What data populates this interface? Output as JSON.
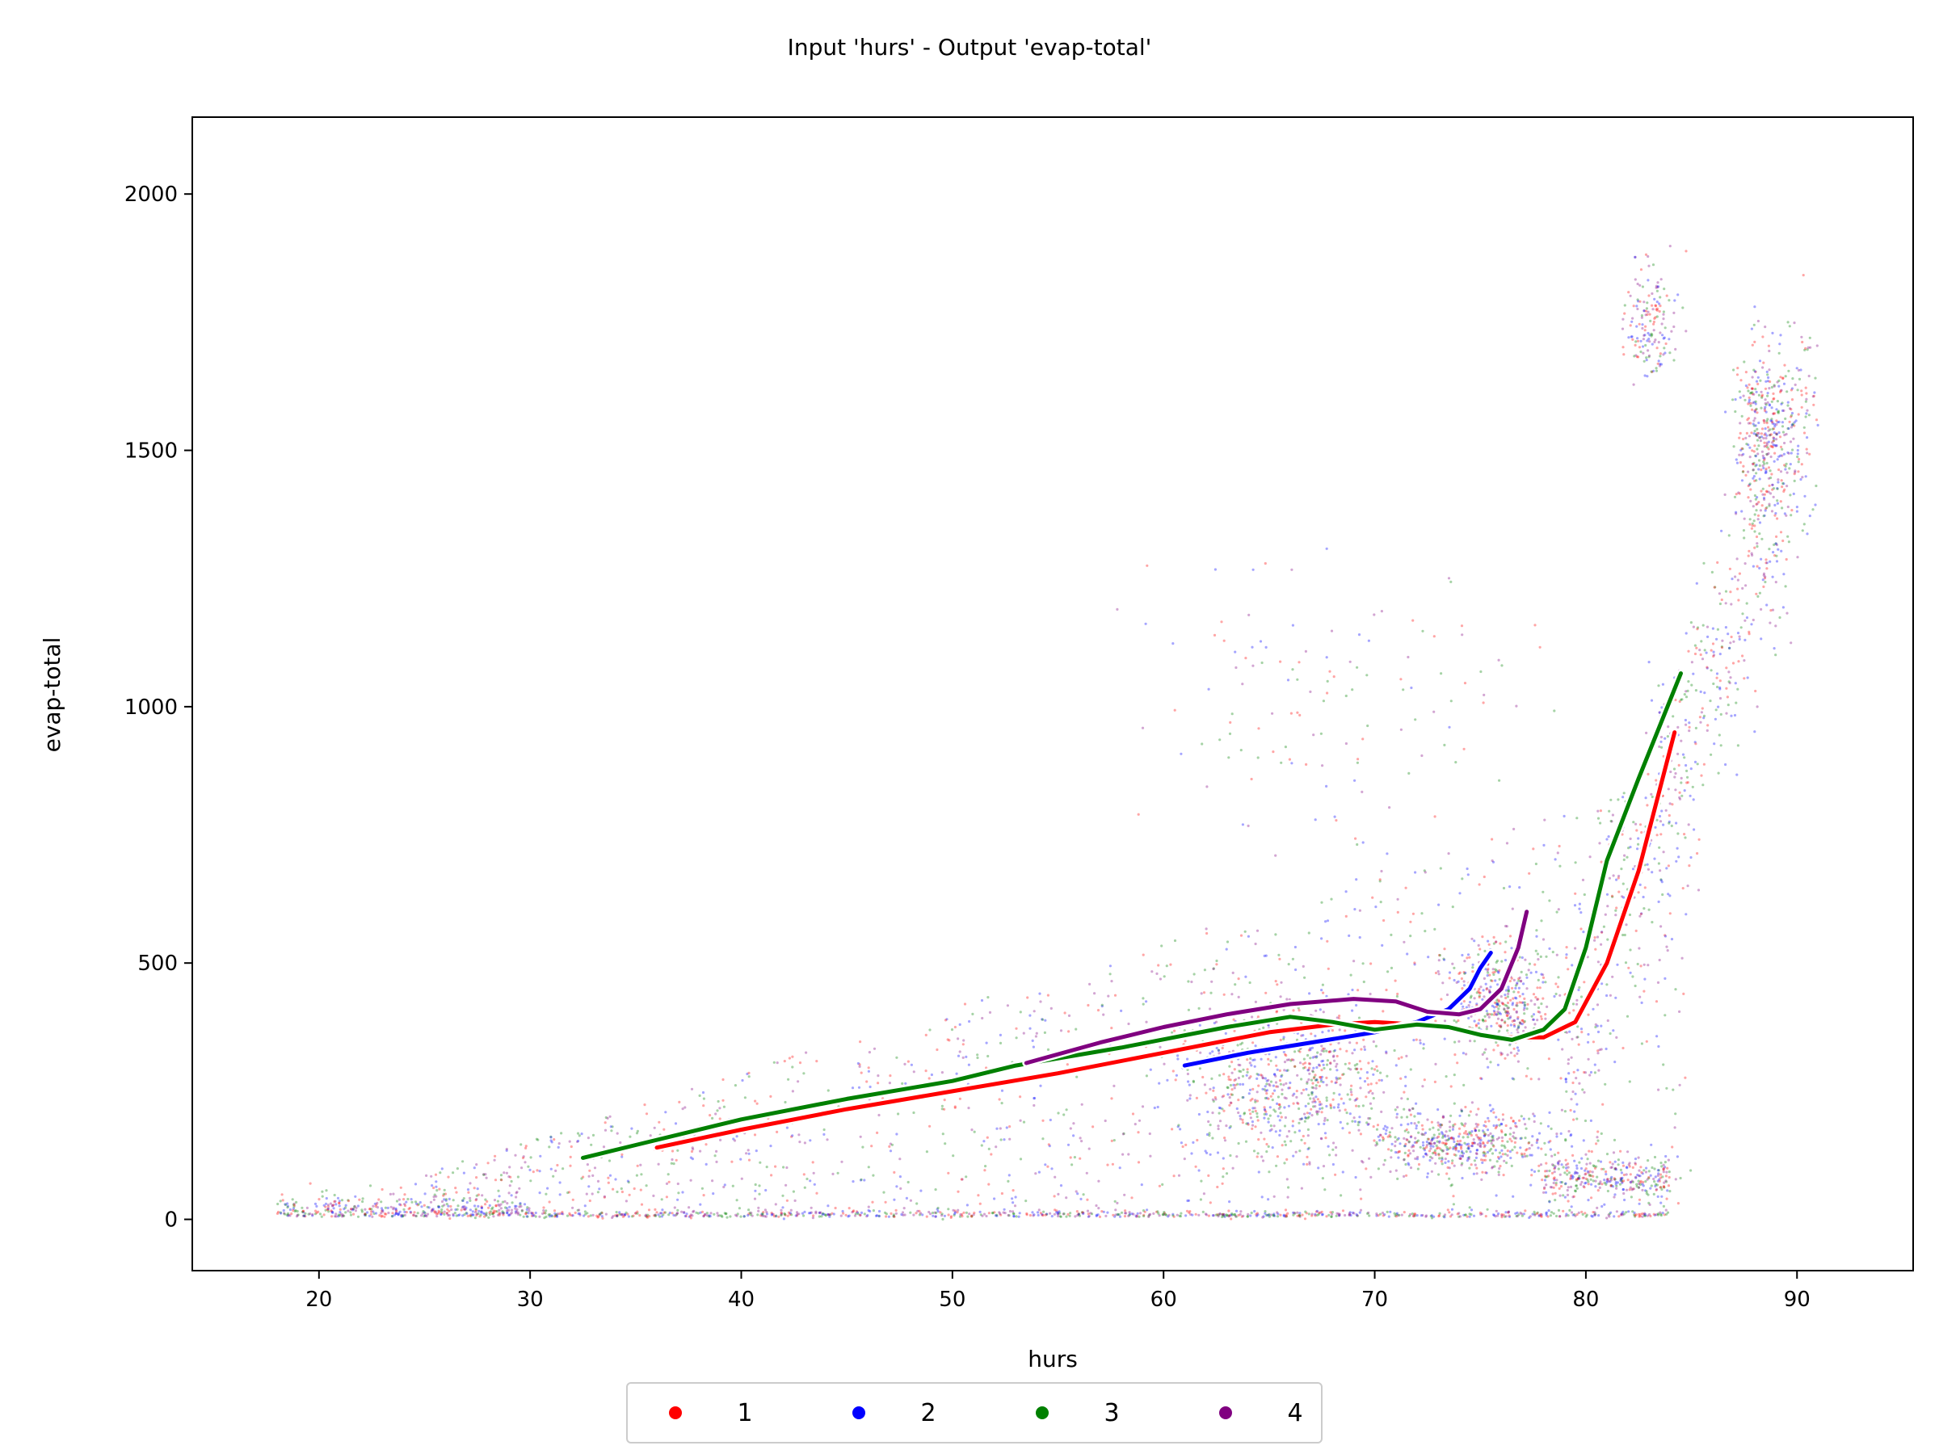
{
  "chart_data": {
    "type": "scatter",
    "title": "Input 'hurs' - Output 'evap-total'",
    "xlabel": "hurs",
    "ylabel": "evap-total",
    "xlim": [
      14,
      95.5
    ],
    "ylim": [
      -100,
      2150
    ],
    "xticks": [
      20,
      30,
      40,
      50,
      60,
      70,
      80,
      90
    ],
    "yticks": [
      0,
      500,
      1000,
      1500,
      2000
    ],
    "grid": false,
    "legend": {
      "placement": "bottom-center",
      "orientation": "horizontal"
    },
    "series": [
      {
        "name": "1",
        "color": "#ff0000",
        "trend": {
          "x": [
            36,
            40,
            45,
            50,
            55,
            60,
            65,
            68,
            70,
            72,
            74,
            76,
            78,
            79.5,
            81,
            82.5,
            84.2
          ],
          "y": [
            140,
            175,
            215,
            250,
            285,
            325,
            365,
            380,
            385,
            380,
            370,
            355,
            355,
            385,
            500,
            680,
            950
          ]
        }
      },
      {
        "name": "2",
        "color": "#0000ff",
        "trend": {
          "x": [
            61,
            64,
            67,
            70,
            72,
            73.5,
            74.5,
            75,
            75.5
          ],
          "y": [
            300,
            325,
            345,
            365,
            385,
            410,
            450,
            490,
            520
          ]
        }
      },
      {
        "name": "3",
        "color": "#008000",
        "trend": {
          "x": [
            32.5,
            35,
            40,
            45,
            50,
            53,
            58,
            63,
            66,
            68,
            70,
            72,
            73.5,
            75,
            76.5,
            78,
            79,
            80,
            81,
            82.5,
            84.5
          ],
          "y": [
            120,
            145,
            195,
            235,
            270,
            300,
            335,
            375,
            395,
            385,
            370,
            380,
            375,
            360,
            350,
            370,
            410,
            530,
            700,
            860,
            1065
          ]
        }
      },
      {
        "name": "4",
        "color": "#800080",
        "trend": {
          "x": [
            53.5,
            57,
            60,
            63,
            66,
            69,
            71,
            72.5,
            74,
            75,
            76,
            76.8,
            77.2
          ],
          "y": [
            305,
            345,
            375,
            400,
            420,
            430,
            425,
            405,
            400,
            410,
            450,
            530,
            600
          ]
        }
      }
    ]
  }
}
